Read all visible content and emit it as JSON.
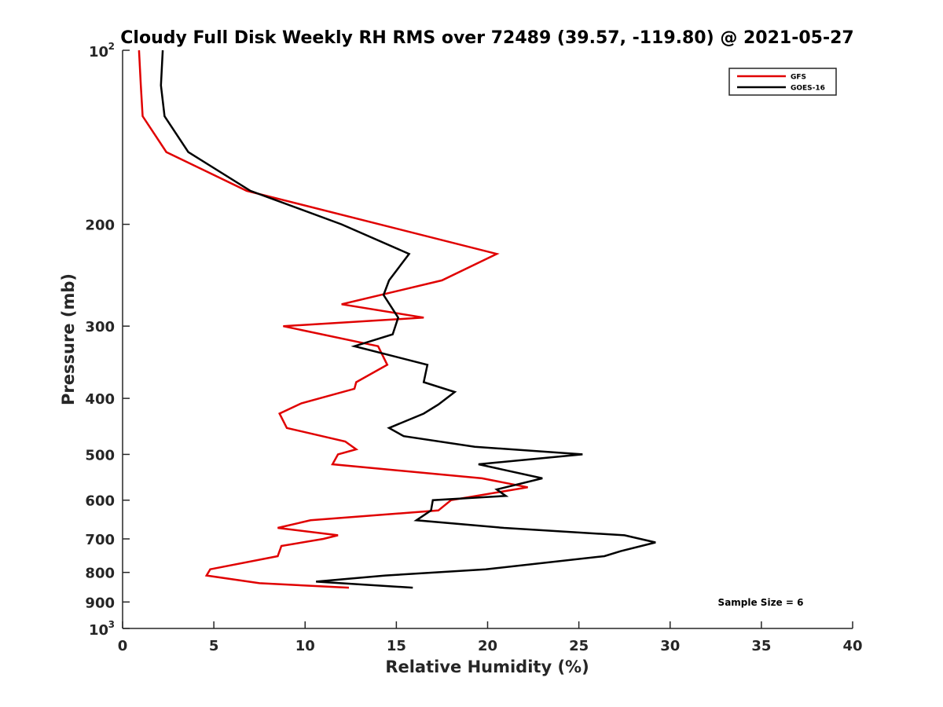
{
  "chart_data": {
    "type": "line",
    "title": "Cloudy Full Disk Weekly RH RMS over 72489 (39.57, -119.80) @ 2021-05-27",
    "xlabel": "Relative Humidity (%)",
    "ylabel": "Pressure (mb)",
    "xlim": [
      0,
      40
    ],
    "ylim": [
      100,
      1000
    ],
    "yscale": "log",
    "y_inverted": true,
    "grid": false,
    "legend_position": "top-right",
    "x_ticks": [
      0,
      5,
      10,
      15,
      20,
      25,
      30,
      35,
      40
    ],
    "x_tick_labels": [
      "0",
      "5",
      "10",
      "15",
      "20",
      "25",
      "30",
      "35",
      "40"
    ],
    "y_ticks": [
      200,
      300,
      400,
      500,
      600,
      700,
      800,
      900
    ],
    "y_tick_labels": [
      "200",
      "300",
      "400",
      "500",
      "600",
      "700",
      "800",
      "900"
    ],
    "y_ticks_power": [
      {
        "value": 100,
        "base": "10",
        "exp": "2"
      },
      {
        "value": 1000,
        "base": "10",
        "exp": "3"
      }
    ],
    "annotation": "Sample Size = 6",
    "series": [
      {
        "name": "GFS",
        "color": "#e00000",
        "points": [
          {
            "x": 0.9,
            "y": 100
          },
          {
            "x": 1.0,
            "y": 115
          },
          {
            "x": 1.1,
            "y": 130
          },
          {
            "x": 2.4,
            "y": 150
          },
          {
            "x": 6.8,
            "y": 175
          },
          {
            "x": 20.5,
            "y": 225
          },
          {
            "x": 17.5,
            "y": 250
          },
          {
            "x": 12.0,
            "y": 275
          },
          {
            "x": 16.5,
            "y": 290
          },
          {
            "x": 8.8,
            "y": 300
          },
          {
            "x": 14.0,
            "y": 325
          },
          {
            "x": 14.5,
            "y": 350
          },
          {
            "x": 12.8,
            "y": 375
          },
          {
            "x": 12.7,
            "y": 385
          },
          {
            "x": 9.8,
            "y": 408
          },
          {
            "x": 8.6,
            "y": 425
          },
          {
            "x": 9.0,
            "y": 450
          },
          {
            "x": 12.2,
            "y": 475
          },
          {
            "x": 12.8,
            "y": 490
          },
          {
            "x": 11.8,
            "y": 500
          },
          {
            "x": 11.5,
            "y": 520
          },
          {
            "x": 19.7,
            "y": 550
          },
          {
            "x": 22.2,
            "y": 570
          },
          {
            "x": 18.0,
            "y": 600
          },
          {
            "x": 17.3,
            "y": 625
          },
          {
            "x": 10.3,
            "y": 650
          },
          {
            "x": 8.5,
            "y": 670
          },
          {
            "x": 11.8,
            "y": 690
          },
          {
            "x": 11.0,
            "y": 700
          },
          {
            "x": 8.7,
            "y": 720
          },
          {
            "x": 8.5,
            "y": 750
          },
          {
            "x": 4.8,
            "y": 790
          },
          {
            "x": 4.6,
            "y": 810
          },
          {
            "x": 7.5,
            "y": 835
          },
          {
            "x": 12.4,
            "y": 850
          }
        ]
      },
      {
        "name": "GOES-16",
        "color": "#000000",
        "points": [
          {
            "x": 2.2,
            "y": 100
          },
          {
            "x": 2.1,
            "y": 115
          },
          {
            "x": 2.3,
            "y": 130
          },
          {
            "x": 3.6,
            "y": 150
          },
          {
            "x": 7.0,
            "y": 175
          },
          {
            "x": 12.0,
            "y": 200
          },
          {
            "x": 15.7,
            "y": 225
          },
          {
            "x": 14.6,
            "y": 250
          },
          {
            "x": 14.3,
            "y": 265
          },
          {
            "x": 15.1,
            "y": 290
          },
          {
            "x": 14.8,
            "y": 310
          },
          {
            "x": 12.7,
            "y": 325
          },
          {
            "x": 16.7,
            "y": 350
          },
          {
            "x": 16.5,
            "y": 375
          },
          {
            "x": 18.2,
            "y": 390
          },
          {
            "x": 17.3,
            "y": 410
          },
          {
            "x": 16.5,
            "y": 425
          },
          {
            "x": 14.6,
            "y": 450
          },
          {
            "x": 15.4,
            "y": 465
          },
          {
            "x": 19.3,
            "y": 485
          },
          {
            "x": 25.2,
            "y": 500
          },
          {
            "x": 19.5,
            "y": 520
          },
          {
            "x": 23.0,
            "y": 550
          },
          {
            "x": 20.5,
            "y": 575
          },
          {
            "x": 21.0,
            "y": 590
          },
          {
            "x": 17.0,
            "y": 600
          },
          {
            "x": 16.9,
            "y": 625
          },
          {
            "x": 16.1,
            "y": 650
          },
          {
            "x": 20.9,
            "y": 670
          },
          {
            "x": 27.5,
            "y": 690
          },
          {
            "x": 29.2,
            "y": 710
          },
          {
            "x": 27.3,
            "y": 735
          },
          {
            "x": 26.4,
            "y": 750
          },
          {
            "x": 19.9,
            "y": 790
          },
          {
            "x": 14.4,
            "y": 810
          },
          {
            "x": 10.6,
            "y": 830
          },
          {
            "x": 15.9,
            "y": 850
          }
        ]
      }
    ]
  }
}
